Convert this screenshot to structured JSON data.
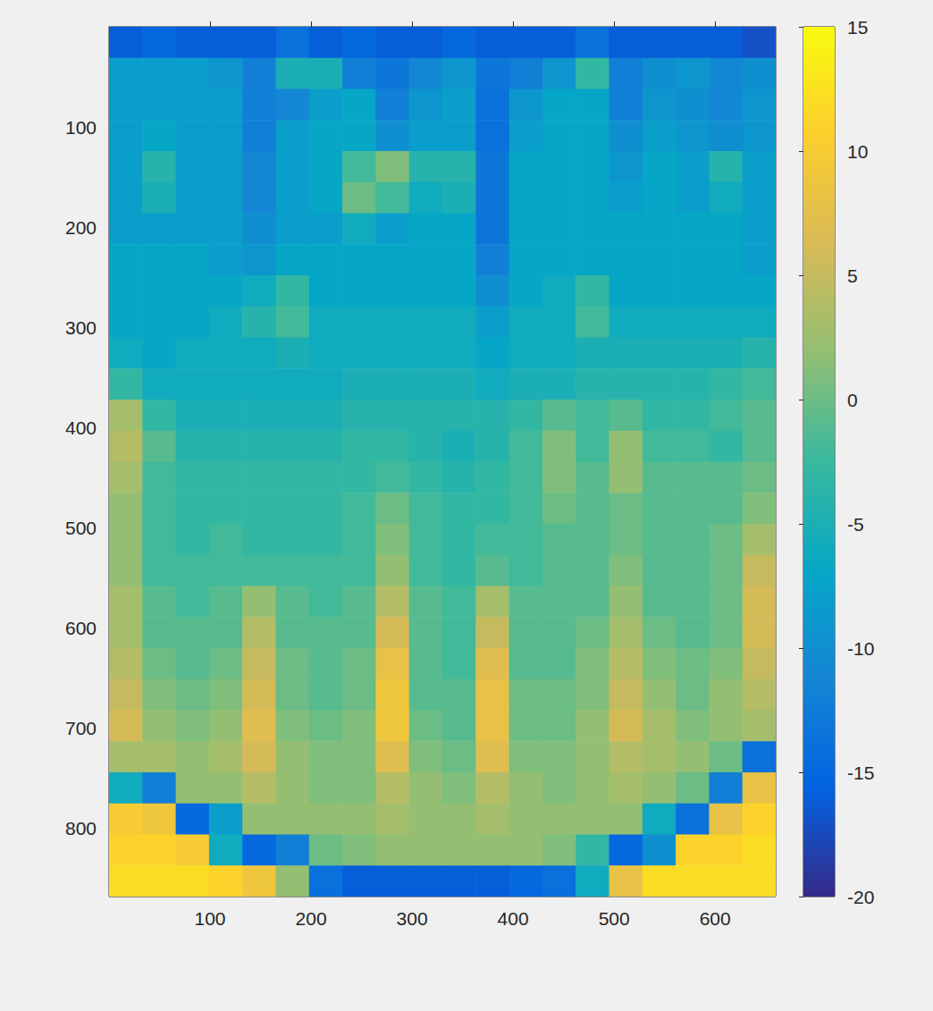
{
  "chart_data": {
    "type": "heatmap",
    "x": [
      16.5,
      49.5,
      82.5,
      115.5,
      148.5,
      181.5,
      214.5,
      247.5,
      280.5,
      313.5,
      346.5,
      379.5,
      412.5,
      445.5,
      478.5,
      511.5,
      544.5,
      577.5,
      610.5,
      643.5
    ],
    "y": [
      15.5,
      46.5,
      77.5,
      108.5,
      139.5,
      170.5,
      201.5,
      232.5,
      263.5,
      294.5,
      325.5,
      356.5,
      387.5,
      418.5,
      449.5,
      480.5,
      511.5,
      542.5,
      573.5,
      604.5,
      635.5,
      666.5,
      697.5,
      728.5,
      759.5,
      790.5,
      821.5,
      852.5
    ],
    "values": [
      [
        -16,
        -15,
        -16,
        -16,
        -16,
        -14,
        -16,
        -15,
        -16,
        -16,
        -15,
        -16,
        -16,
        -16,
        -14,
        -16,
        -16,
        -16,
        -16,
        -17
      ],
      [
        -8,
        -8,
        -8,
        -9,
        -12,
        -5,
        -5,
        -12,
        -13,
        -11,
        -9,
        -13,
        -12,
        -9,
        -3,
        -12,
        -10,
        -9,
        -11,
        -10
      ],
      [
        -8,
        -8,
        -8,
        -8,
        -12,
        -11,
        -8,
        -7,
        -12,
        -9,
        -8,
        -14,
        -9,
        -7,
        -7,
        -12,
        -9,
        -10,
        -11,
        -9
      ],
      [
        -8,
        -7,
        -8,
        -8,
        -12,
        -8,
        -7,
        -7,
        -10,
        -8,
        -8,
        -14,
        -8,
        -7,
        -7,
        -10,
        -8,
        -9,
        -10,
        -9
      ],
      [
        -8,
        -4,
        -8,
        -8,
        -11,
        -8,
        -7,
        -2,
        1,
        -4,
        -4,
        -13,
        -7,
        -7,
        -7,
        -9,
        -7,
        -8,
        -4,
        -8
      ],
      [
        -8,
        -5,
        -8,
        -8,
        -11,
        -8,
        -7,
        0,
        -2,
        -6,
        -5,
        -13,
        -7,
        -7,
        -7,
        -8,
        -7,
        -8,
        -6,
        -8
      ],
      [
        -8,
        -8,
        -8,
        -8,
        -10,
        -8,
        -8,
        -6,
        -8,
        -7,
        -7,
        -13,
        -7,
        -7,
        -7,
        -7,
        -7,
        -7,
        -7,
        -8
      ],
      [
        -7,
        -7,
        -7,
        -8,
        -9,
        -7,
        -7,
        -7,
        -7,
        -7,
        -7,
        -12,
        -7,
        -7,
        -7,
        -7,
        -7,
        -7,
        -7,
        -8
      ],
      [
        -7,
        -7,
        -7,
        -7,
        -6,
        -3,
        -7,
        -7,
        -7,
        -7,
        -7,
        -10,
        -7,
        -6,
        -3,
        -7,
        -7,
        -7,
        -7,
        -7
      ],
      [
        -7,
        -7,
        -7,
        -6,
        -4,
        -2,
        -6,
        -6,
        -6,
        -6,
        -6,
        -8,
        -6,
        -6,
        -2,
        -6,
        -6,
        -6,
        -6,
        -6
      ],
      [
        -6,
        -7,
        -6,
        -6,
        -6,
        -5,
        -6,
        -6,
        -6,
        -6,
        -6,
        -7,
        -6,
        -6,
        -5,
        -5,
        -5,
        -5,
        -5,
        -4
      ],
      [
        -3,
        -6,
        -6,
        -6,
        -6,
        -6,
        -6,
        -5,
        -5,
        -5,
        -5,
        -6,
        -5,
        -5,
        -4,
        -4,
        -4,
        -4,
        -3,
        -2
      ],
      [
        3,
        -3,
        -5,
        -5,
        -5,
        -5,
        -5,
        -4,
        -4,
        -4,
        -4,
        -4,
        -3,
        -1,
        -2,
        -1,
        -3,
        -3,
        -2,
        -1
      ],
      [
        4,
        -1,
        -4,
        -4,
        -4,
        -4,
        -4,
        -3,
        -3,
        -4,
        -5,
        -4,
        -2,
        1,
        -2,
        2,
        -2,
        -2,
        -3,
        -1
      ],
      [
        3,
        -2,
        -3,
        -3,
        -3,
        -3,
        -3,
        -3,
        -2,
        -3,
        -4,
        -3,
        -2,
        1,
        -1,
        2,
        -1,
        -1,
        -1,
        0
      ],
      [
        2,
        -2,
        -3,
        -3,
        -3,
        -3,
        -3,
        -2,
        0,
        -2,
        -3,
        -3,
        -2,
        0,
        -1,
        0,
        -1,
        -1,
        -1,
        1
      ],
      [
        2,
        -2,
        -3,
        -2,
        -3,
        -3,
        -3,
        -2,
        1,
        -2,
        -3,
        -2,
        -2,
        -1,
        -1,
        0,
        -1,
        -1,
        0,
        3
      ],
      [
        2,
        -2,
        -2,
        -2,
        -2,
        -2,
        -2,
        -2,
        2,
        -2,
        -3,
        -1,
        -2,
        -1,
        -1,
        1,
        -1,
        -1,
        0,
        5
      ],
      [
        3,
        -1,
        -2,
        -1,
        2,
        -1,
        -2,
        -1,
        4,
        -1,
        -2,
        3,
        -1,
        -1,
        -1,
        2,
        -1,
        -1,
        0,
        6
      ],
      [
        3,
        -1,
        -1,
        -1,
        4,
        -1,
        -1,
        -1,
        6,
        -1,
        -2,
        5,
        -1,
        -1,
        0,
        3,
        0,
        -1,
        0,
        6
      ],
      [
        4,
        0,
        -1,
        0,
        5,
        0,
        -1,
        0,
        8,
        -1,
        -2,
        7,
        -1,
        -1,
        1,
        4,
        1,
        0,
        1,
        5
      ],
      [
        5,
        1,
        0,
        1,
        6,
        0,
        -1,
        0,
        9,
        -1,
        -1,
        8,
        0,
        0,
        1,
        5,
        2,
        0,
        2,
        4
      ],
      [
        6,
        2,
        1,
        2,
        7,
        1,
        0,
        1,
        9,
        0,
        -1,
        8,
        0,
        0,
        2,
        6,
        3,
        1,
        2,
        3
      ],
      [
        3,
        3,
        2,
        3,
        6,
        2,
        1,
        1,
        7,
        1,
        0,
        7,
        1,
        1,
        2,
        4,
        3,
        2,
        0,
        -14
      ],
      [
        -6,
        -12,
        2,
        2,
        4,
        2,
        1,
        1,
        4,
        2,
        1,
        4,
        2,
        1,
        2,
        3,
        2,
        0,
        -12,
        8
      ],
      [
        10,
        9,
        -15,
        -8,
        2,
        2,
        2,
        2,
        3,
        2,
        2,
        3,
        2,
        2,
        2,
        2,
        -6,
        -14,
        8,
        11
      ],
      [
        11,
        11,
        10,
        -6,
        -15,
        -12,
        0,
        1,
        2,
        2,
        2,
        2,
        2,
        1,
        -3,
        -15,
        -10,
        11,
        11,
        12
      ],
      [
        12,
        12,
        12,
        11,
        9,
        2,
        -14,
        -16,
        -16,
        -16,
        -16,
        -16,
        -15,
        -14,
        -6,
        8,
        12,
        12,
        12,
        12
      ]
    ],
    "xlim": [
      0,
      660
    ],
    "ylim": [
      0,
      868
    ],
    "xticks": [
      100,
      200,
      300,
      400,
      500,
      600
    ],
    "yticks": [
      100,
      200,
      300,
      400,
      500,
      600,
      700,
      800
    ],
    "clim": [
      -20,
      15
    ],
    "cticks": [
      -20,
      -15,
      -10,
      -5,
      0,
      5,
      10,
      15
    ]
  }
}
